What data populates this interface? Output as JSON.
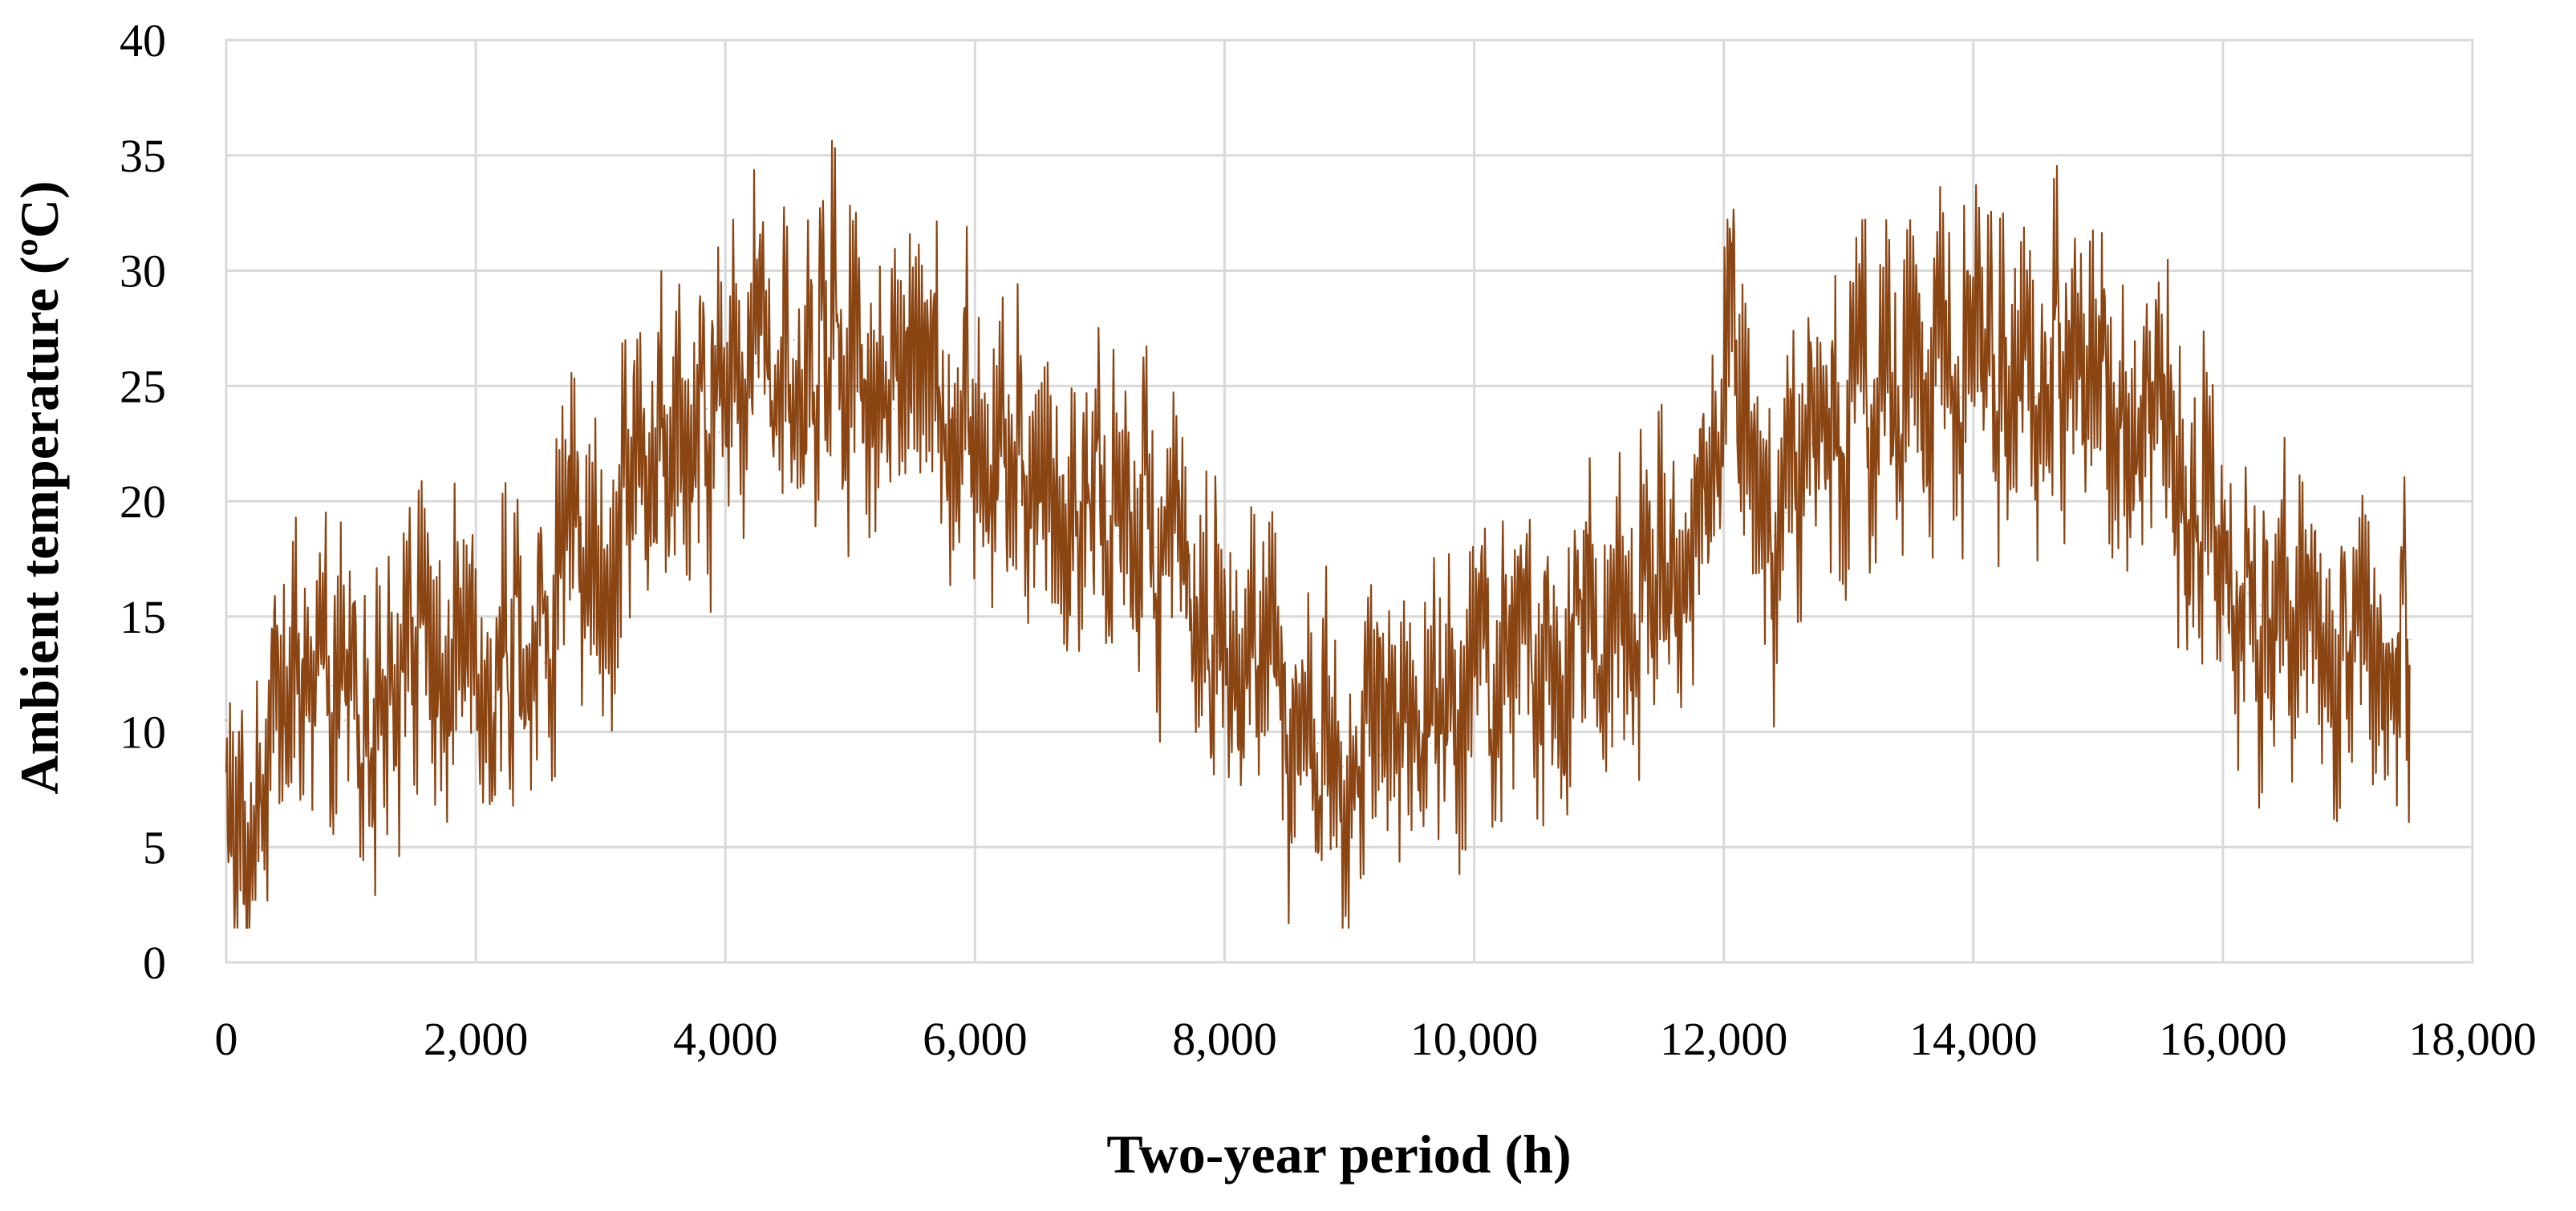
{
  "chart_data": {
    "type": "line",
    "title": "",
    "xlabel": "Two-year period (h)",
    "ylabel": "Ambient temperature (ºC)",
    "xlim": [
      0,
      18000
    ],
    "ylim": [
      0,
      40
    ],
    "x_ticks": [
      0,
      2000,
      4000,
      6000,
      8000,
      10000,
      12000,
      14000,
      16000,
      18000
    ],
    "x_tick_labels": [
      "0",
      "2,000",
      "4,000",
      "6,000",
      "8,000",
      "10,000",
      "12,000",
      "14,000",
      "16,000",
      "18,000"
    ],
    "y_ticks": [
      0,
      5,
      10,
      15,
      20,
      25,
      30,
      35,
      40
    ],
    "y_tick_labels": [
      "0",
      "5",
      "10",
      "15",
      "20",
      "25",
      "30",
      "35",
      "40"
    ],
    "grid": true,
    "legend": "none",
    "series": [
      {
        "color": "#8b4513",
        "x": [
          0,
          80,
          150,
          220,
          290,
          380,
          450,
          550,
          650,
          750,
          850,
          950,
          1050,
          1150,
          1250,
          1350,
          1450,
          1550,
          1650,
          1750,
          1850,
          1950,
          2050,
          2150,
          2250,
          2350,
          2450,
          2550,
          2650,
          2750,
          2850,
          2950,
          3050,
          3150,
          3250,
          3350,
          3450,
          3550,
          3650,
          3750,
          3850,
          3950,
          4050,
          4150,
          4250,
          4350,
          4450,
          4550,
          4650,
          4750,
          4850,
          4950,
          5050,
          5150,
          5250,
          5350,
          5450,
          5550,
          5650,
          5750,
          5850,
          5950,
          6050,
          6150,
          6250,
          6350,
          6450,
          6550,
          6650,
          6750,
          6850,
          6950,
          7050,
          7150,
          7250,
          7350,
          7450,
          7550,
          7650,
          7750,
          7850,
          7950,
          8050,
          8150,
          8250,
          8350,
          8450,
          8550,
          8650,
          8750,
          8850,
          8950,
          9050,
          9150,
          9250,
          9350,
          9450,
          9550,
          9650,
          9750,
          9850,
          9950,
          10050,
          10150,
          10250,
          10350,
          10450,
          10550,
          10650,
          10750,
          10850,
          10950,
          11050,
          11150,
          11250,
          11350,
          11450,
          11550,
          11650,
          11750,
          11850,
          11950,
          12020,
          12100,
          12200,
          12300,
          12400,
          12500,
          12600,
          12700,
          12800,
          12900,
          13000,
          13100,
          13200,
          13300,
          13400,
          13500,
          13600,
          13700,
          13800,
          13900,
          14000,
          14100,
          14200,
          14300,
          14400,
          14500,
          14600,
          14700,
          14800,
          14900,
          15000,
          15100,
          15200,
          15300,
          15400,
          15500,
          15600,
          15700,
          15800,
          15900,
          16000,
          16100,
          16200,
          16300,
          16400,
          16500,
          16600,
          16700,
          16800,
          16900,
          17000,
          17100,
          17200,
          17300,
          17400,
          17500
        ],
        "y": [
          10.5,
          8.0,
          6.0,
          4.0,
          7.5,
          11.0,
          9.0,
          12.5,
          11.0,
          14.0,
          12.0,
          10.5,
          11.5,
          9.5,
          10.0,
          11.0,
          12.5,
          13.0,
          15.5,
          13.5,
          12.5,
          14.0,
          12.0,
          11.5,
          13.5,
          15.0,
          14.0,
          13.0,
          15.5,
          17.0,
          19.0,
          18.0,
          17.5,
          20.0,
          21.0,
          21.5,
          22.5,
          21.0,
          22.5,
          23.5,
          24.0,
          23.0,
          25.0,
          24.5,
          26.0,
          25.0,
          26.5,
          27.0,
          25.5,
          26.0,
          27.5,
          26.0,
          25.0,
          26.5,
          25.5,
          24.0,
          25.0,
          26.0,
          24.5,
          25.0,
          23.5,
          24.0,
          22.5,
          21.5,
          23.0,
          22.0,
          21.5,
          23.5,
          22.0,
          20.5,
          19.5,
          21.0,
          20.0,
          18.5,
          19.0,
          20.5,
          18.0,
          17.0,
          16.5,
          15.5,
          14.0,
          13.5,
          14.5,
          13.0,
          12.0,
          12.5,
          11.5,
          10.0,
          11.0,
          9.5,
          9.0,
          8.5,
          9.5,
          10.5,
          9.0,
          10.0,
          11.5,
          10.5,
          9.5,
          11.0,
          12.0,
          11.0,
          12.5,
          11.5,
          13.0,
          12.0,
          13.5,
          14.0,
          12.5,
          13.5,
          14.5,
          13.5,
          14.0,
          15.0,
          16.0,
          15.5,
          16.5,
          17.0,
          18.0,
          17.5,
          19.0,
          22.0,
          28.0,
          27.0,
          23.0,
          20.0,
          18.5,
          19.5,
          21.0,
          22.5,
          24.0,
          23.0,
          24.5,
          25.0,
          24.0,
          26.0,
          25.0,
          24.5,
          25.5,
          26.0,
          25.0,
          24.5,
          25.5,
          26.5,
          25.0,
          26.0,
          25.5,
          24.5,
          26.0,
          27.0,
          25.5,
          25.0,
          24.0,
          25.0,
          23.5,
          22.5,
          24.5,
          25.0,
          23.0,
          21.0,
          20.0,
          18.5,
          18.0,
          17.0,
          16.0,
          15.5,
          14.5,
          15.0,
          14.0,
          13.5,
          14.5,
          13.0,
          13.5,
          14.0,
          13.0,
          12.5,
          13.5,
          14.0
        ]
      }
    ]
  }
}
